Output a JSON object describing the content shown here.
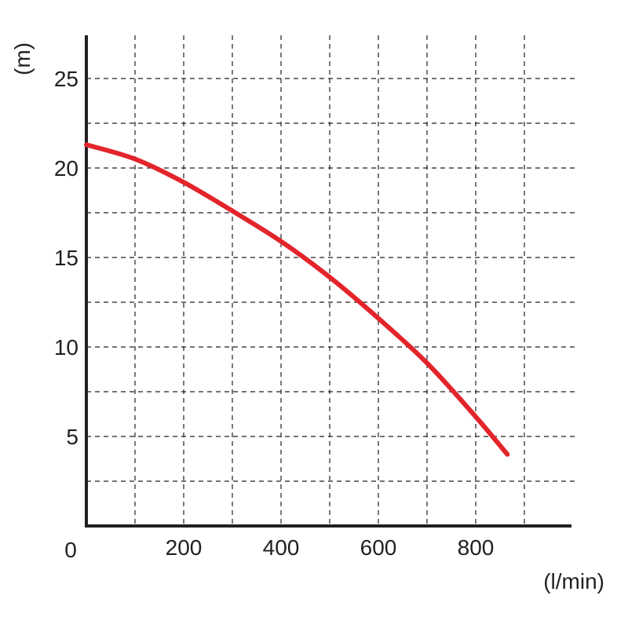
{
  "chart_data": {
    "type": "line",
    "title": "",
    "xlabel": "(l/min)",
    "ylabel": "(m)",
    "xlim": [
      0,
      1000
    ],
    "ylim": [
      0,
      27.5
    ],
    "x_ticks": [
      200,
      400,
      600,
      800
    ],
    "x_tick_labels": [
      "200",
      "400",
      "600",
      "800"
    ],
    "y_ticks": [
      5,
      10,
      15,
      20,
      25
    ],
    "y_tick_labels": [
      "5",
      "10",
      "15",
      "20",
      "25"
    ],
    "origin_label": "0",
    "x_grid": [
      100,
      200,
      300,
      400,
      500,
      600,
      700,
      800,
      900
    ],
    "y_grid": [
      2.5,
      5,
      7.5,
      10,
      12.5,
      15,
      17.5,
      20,
      22.5,
      25
    ],
    "grid": true,
    "grid_style": "dashed",
    "legend": false,
    "series": [
      {
        "color": "#e3242b",
        "x": [
          0,
          100,
          200,
          300,
          400,
          500,
          600,
          700,
          800,
          865
        ],
        "y": [
          21.3,
          20.5,
          19.2,
          17.6,
          15.9,
          13.9,
          11.6,
          9.1,
          6.1,
          4.0
        ]
      }
    ]
  }
}
